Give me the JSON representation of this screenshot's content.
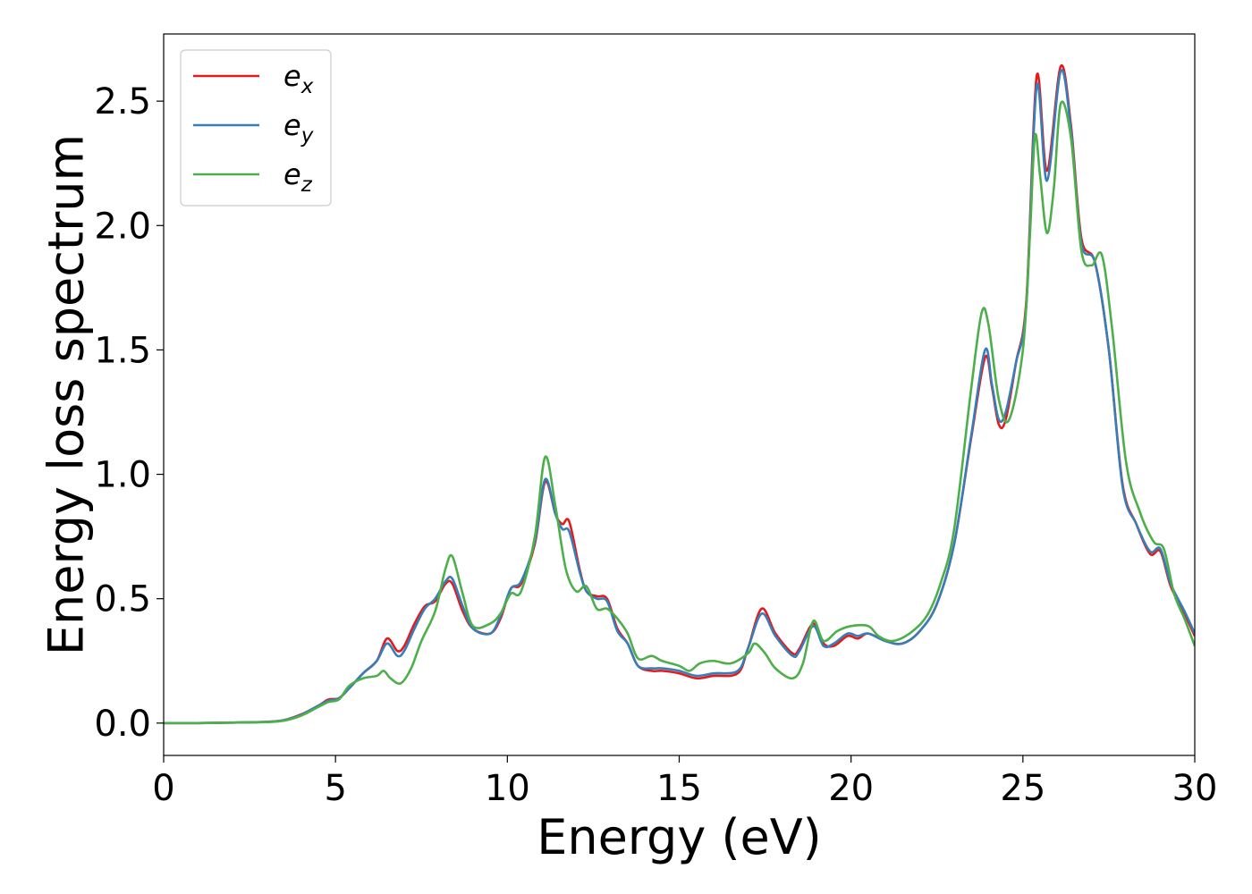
{
  "chart_data": {
    "type": "line",
    "title": "",
    "xlabel": "Energy (eV)",
    "ylabel": "Energy loss spectrum",
    "xlim": [
      0,
      30
    ],
    "ylim": [
      -0.13,
      2.77
    ],
    "xticks": [
      0,
      5,
      10,
      15,
      20,
      25,
      30
    ],
    "xtick_labels": [
      "0",
      "5",
      "10",
      "15",
      "20",
      "25",
      "30"
    ],
    "yticks": [
      0.0,
      0.5,
      1.0,
      1.5,
      2.0,
      2.5
    ],
    "ytick_labels": [
      "0.0",
      "0.5",
      "1.0",
      "1.5",
      "2.0",
      "2.5"
    ],
    "grid": false,
    "legend_position": "top-left",
    "series": [
      {
        "name": "e_x",
        "label_base": "e",
        "label_sub": "x",
        "color": "#e41a1c",
        "points": [
          [
            0,
            0
          ],
          [
            1,
            0
          ],
          [
            2,
            0.002
          ],
          [
            3,
            0.005
          ],
          [
            3.5,
            0.012
          ],
          [
            4,
            0.035
          ],
          [
            4.5,
            0.07
          ],
          [
            4.8,
            0.095
          ],
          [
            5.1,
            0.1
          ],
          [
            5.4,
            0.14
          ],
          [
            5.8,
            0.2
          ],
          [
            6.2,
            0.25
          ],
          [
            6.5,
            0.34
          ],
          [
            6.8,
            0.29
          ],
          [
            7.0,
            0.31
          ],
          [
            7.3,
            0.4
          ],
          [
            7.6,
            0.47
          ],
          [
            7.9,
            0.49
          ],
          [
            8.2,
            0.56
          ],
          [
            8.4,
            0.56
          ],
          [
            8.7,
            0.45
          ],
          [
            9.0,
            0.38
          ],
          [
            9.5,
            0.36
          ],
          [
            9.8,
            0.42
          ],
          [
            10.1,
            0.54
          ],
          [
            10.4,
            0.56
          ],
          [
            10.8,
            0.72
          ],
          [
            11.1,
            0.97
          ],
          [
            11.4,
            0.84
          ],
          [
            11.6,
            0.8
          ],
          [
            11.8,
            0.81
          ],
          [
            12.1,
            0.62
          ],
          [
            12.3,
            0.53
          ],
          [
            12.6,
            0.51
          ],
          [
            12.9,
            0.5
          ],
          [
            13.2,
            0.38
          ],
          [
            13.5,
            0.32
          ],
          [
            13.8,
            0.23
          ],
          [
            14.2,
            0.21
          ],
          [
            14.5,
            0.21
          ],
          [
            15.0,
            0.2
          ],
          [
            15.5,
            0.18
          ],
          [
            16.0,
            0.19
          ],
          [
            16.7,
            0.2
          ],
          [
            17.0,
            0.3
          ],
          [
            17.4,
            0.46
          ],
          [
            17.8,
            0.36
          ],
          [
            18.3,
            0.28
          ],
          [
            18.5,
            0.3
          ],
          [
            18.9,
            0.4
          ],
          [
            19.2,
            0.32
          ],
          [
            19.5,
            0.31
          ],
          [
            19.9,
            0.35
          ],
          [
            20.2,
            0.34
          ],
          [
            20.5,
            0.36
          ],
          [
            21.0,
            0.33
          ],
          [
            21.5,
            0.32
          ],
          [
            22.0,
            0.37
          ],
          [
            22.5,
            0.48
          ],
          [
            23.0,
            0.72
          ],
          [
            23.5,
            1.15
          ],
          [
            23.9,
            1.47
          ],
          [
            24.1,
            1.35
          ],
          [
            24.3,
            1.2
          ],
          [
            24.5,
            1.22
          ],
          [
            24.8,
            1.45
          ],
          [
            25.1,
            1.7
          ],
          [
            25.4,
            2.6
          ],
          [
            25.7,
            2.22
          ],
          [
            26.1,
            2.64
          ],
          [
            26.4,
            2.4
          ],
          [
            26.7,
            1.95
          ],
          [
            27.1,
            1.85
          ],
          [
            27.5,
            1.5
          ],
          [
            27.9,
            0.96
          ],
          [
            28.3,
            0.8
          ],
          [
            28.7,
            0.68
          ],
          [
            29.0,
            0.69
          ],
          [
            29.3,
            0.55
          ],
          [
            29.7,
            0.44
          ],
          [
            30.0,
            0.35
          ]
        ]
      },
      {
        "name": "e_y",
        "label_base": "e",
        "label_sub": "y",
        "color": "#377eb8",
        "points": [
          [
            0,
            0
          ],
          [
            1,
            0
          ],
          [
            2,
            0.002
          ],
          [
            3,
            0.005
          ],
          [
            3.5,
            0.012
          ],
          [
            4,
            0.033
          ],
          [
            4.5,
            0.07
          ],
          [
            4.8,
            0.09
          ],
          [
            5.1,
            0.1
          ],
          [
            5.4,
            0.14
          ],
          [
            5.8,
            0.2
          ],
          [
            6.2,
            0.25
          ],
          [
            6.5,
            0.32
          ],
          [
            6.8,
            0.27
          ],
          [
            7.0,
            0.29
          ],
          [
            7.3,
            0.38
          ],
          [
            7.6,
            0.46
          ],
          [
            7.9,
            0.5
          ],
          [
            8.2,
            0.57
          ],
          [
            8.4,
            0.58
          ],
          [
            8.7,
            0.47
          ],
          [
            9.0,
            0.38
          ],
          [
            9.5,
            0.36
          ],
          [
            9.8,
            0.43
          ],
          [
            10.1,
            0.54
          ],
          [
            10.4,
            0.57
          ],
          [
            10.8,
            0.73
          ],
          [
            11.1,
            0.98
          ],
          [
            11.4,
            0.84
          ],
          [
            11.6,
            0.78
          ],
          [
            11.8,
            0.77
          ],
          [
            12.1,
            0.61
          ],
          [
            12.3,
            0.53
          ],
          [
            12.6,
            0.5
          ],
          [
            12.9,
            0.49
          ],
          [
            13.2,
            0.37
          ],
          [
            13.5,
            0.32
          ],
          [
            13.8,
            0.23
          ],
          [
            14.2,
            0.22
          ],
          [
            14.5,
            0.22
          ],
          [
            15.0,
            0.21
          ],
          [
            15.5,
            0.19
          ],
          [
            16.0,
            0.2
          ],
          [
            16.7,
            0.21
          ],
          [
            17.0,
            0.3
          ],
          [
            17.4,
            0.44
          ],
          [
            17.8,
            0.35
          ],
          [
            18.3,
            0.27
          ],
          [
            18.5,
            0.29
          ],
          [
            18.9,
            0.39
          ],
          [
            19.2,
            0.31
          ],
          [
            19.5,
            0.32
          ],
          [
            19.9,
            0.36
          ],
          [
            20.2,
            0.35
          ],
          [
            20.5,
            0.36
          ],
          [
            21.0,
            0.33
          ],
          [
            21.5,
            0.32
          ],
          [
            22.0,
            0.37
          ],
          [
            22.5,
            0.48
          ],
          [
            23.0,
            0.72
          ],
          [
            23.5,
            1.16
          ],
          [
            23.9,
            1.5
          ],
          [
            24.1,
            1.36
          ],
          [
            24.3,
            1.22
          ],
          [
            24.5,
            1.25
          ],
          [
            24.8,
            1.45
          ],
          [
            25.1,
            1.68
          ],
          [
            25.4,
            2.56
          ],
          [
            25.7,
            2.18
          ],
          [
            26.1,
            2.62
          ],
          [
            26.4,
            2.38
          ],
          [
            26.7,
            1.93
          ],
          [
            27.1,
            1.85
          ],
          [
            27.5,
            1.5
          ],
          [
            27.9,
            0.95
          ],
          [
            28.3,
            0.8
          ],
          [
            28.7,
            0.69
          ],
          [
            29.0,
            0.7
          ],
          [
            29.3,
            0.56
          ],
          [
            29.7,
            0.45
          ],
          [
            30.0,
            0.36
          ]
        ]
      },
      {
        "name": "e_z",
        "label_base": "e",
        "label_sub": "z",
        "color": "#4daf4a",
        "points": [
          [
            0,
            0
          ],
          [
            1,
            0
          ],
          [
            2,
            0.002
          ],
          [
            3,
            0.004
          ],
          [
            3.5,
            0.01
          ],
          [
            4,
            0.03
          ],
          [
            4.5,
            0.065
          ],
          [
            4.8,
            0.085
          ],
          [
            5.1,
            0.095
          ],
          [
            5.4,
            0.15
          ],
          [
            5.8,
            0.18
          ],
          [
            6.2,
            0.19
          ],
          [
            6.4,
            0.21
          ],
          [
            6.6,
            0.18
          ],
          [
            6.9,
            0.16
          ],
          [
            7.2,
            0.22
          ],
          [
            7.5,
            0.33
          ],
          [
            7.9,
            0.45
          ],
          [
            8.2,
            0.62
          ],
          [
            8.4,
            0.67
          ],
          [
            8.7,
            0.52
          ],
          [
            9.0,
            0.39
          ],
          [
            9.5,
            0.4
          ],
          [
            9.8,
            0.44
          ],
          [
            10.1,
            0.52
          ],
          [
            10.4,
            0.53
          ],
          [
            10.8,
            0.75
          ],
          [
            11.1,
            1.07
          ],
          [
            11.4,
            0.87
          ],
          [
            11.7,
            0.62
          ],
          [
            12.0,
            0.53
          ],
          [
            12.3,
            0.55
          ],
          [
            12.6,
            0.46
          ],
          [
            12.9,
            0.46
          ],
          [
            13.2,
            0.42
          ],
          [
            13.5,
            0.36
          ],
          [
            13.8,
            0.26
          ],
          [
            14.2,
            0.27
          ],
          [
            14.5,
            0.25
          ],
          [
            15.0,
            0.23
          ],
          [
            15.3,
            0.21
          ],
          [
            15.6,
            0.24
          ],
          [
            16.0,
            0.25
          ],
          [
            16.5,
            0.24
          ],
          [
            17.0,
            0.28
          ],
          [
            17.2,
            0.32
          ],
          [
            17.5,
            0.28
          ],
          [
            17.8,
            0.22
          ],
          [
            18.3,
            0.18
          ],
          [
            18.6,
            0.24
          ],
          [
            18.9,
            0.41
          ],
          [
            19.2,
            0.33
          ],
          [
            19.6,
            0.37
          ],
          [
            20.0,
            0.39
          ],
          [
            20.5,
            0.39
          ],
          [
            20.8,
            0.35
          ],
          [
            21.2,
            0.33
          ],
          [
            21.7,
            0.36
          ],
          [
            22.2,
            0.43
          ],
          [
            22.6,
            0.56
          ],
          [
            23.0,
            0.78
          ],
          [
            23.5,
            1.35
          ],
          [
            23.8,
            1.65
          ],
          [
            24.0,
            1.6
          ],
          [
            24.3,
            1.3
          ],
          [
            24.6,
            1.22
          ],
          [
            25.0,
            1.5
          ],
          [
            25.2,
            1.95
          ],
          [
            25.35,
            2.36
          ],
          [
            25.5,
            2.2
          ],
          [
            25.7,
            1.97
          ],
          [
            25.9,
            2.15
          ],
          [
            26.1,
            2.49
          ],
          [
            26.4,
            2.35
          ],
          [
            26.7,
            1.9
          ],
          [
            27.0,
            1.84
          ],
          [
            27.3,
            1.88
          ],
          [
            27.6,
            1.58
          ],
          [
            28.0,
            1.05
          ],
          [
            28.4,
            0.85
          ],
          [
            28.8,
            0.73
          ],
          [
            29.1,
            0.7
          ],
          [
            29.4,
            0.52
          ],
          [
            29.7,
            0.42
          ],
          [
            30.0,
            0.31
          ]
        ]
      }
    ]
  }
}
